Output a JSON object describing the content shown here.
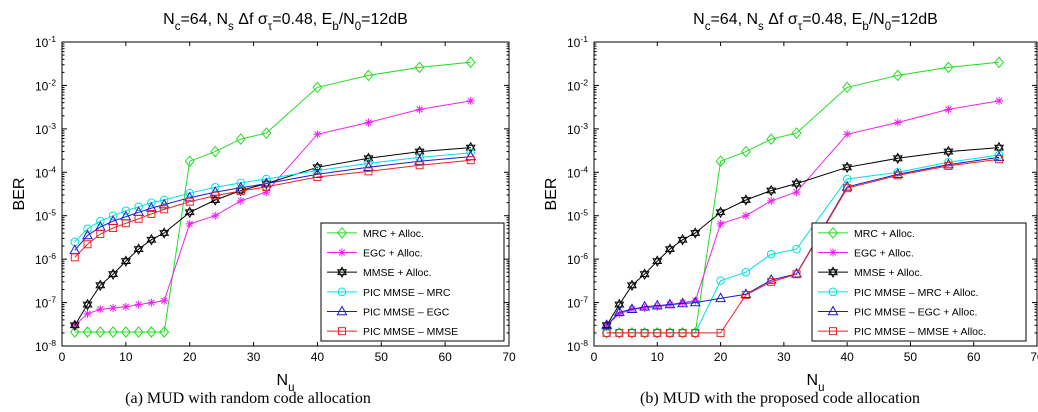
{
  "figure": {
    "panels": [
      {
        "caption": "(a) MUD with random code allocation"
      },
      {
        "caption": "(b) MUD with the proposed code allocation"
      }
    ]
  },
  "chart_data": [
    {
      "type": "line",
      "title": "N_c=64, N_s Δf σ_τ=0.48, E_b/N_0=12dB",
      "xlabel": "N_u",
      "ylabel": "BER",
      "xlim": [
        0,
        70
      ],
      "ylim": [
        1e-08,
        0.1
      ],
      "yscale": "log",
      "xticks": [
        0,
        10,
        20,
        30,
        40,
        50,
        60,
        70
      ],
      "yticks": [
        1e-08,
        1e-07,
        1e-06,
        1e-05,
        0.0001,
        0.001,
        0.01,
        0.1
      ],
      "grid": false,
      "legend": "bottom-right",
      "series": [
        {
          "name": "MRC + Alloc.",
          "color": "#22dd22",
          "marker": "diamond",
          "x": [
            2,
            4,
            6,
            8,
            10,
            12,
            14,
            16,
            20,
            24,
            28,
            32,
            40,
            48,
            56,
            64
          ],
          "y": [
            2.1e-08,
            2.1e-08,
            2.1e-08,
            2.1e-08,
            2.1e-08,
            2.1e-08,
            2.1e-08,
            2.1e-08,
            0.00018,
            0.0003,
            0.00058,
            0.0008,
            0.009,
            0.017,
            0.026,
            0.034
          ]
        },
        {
          "name": "EGC + Alloc.",
          "color": "#ee22ee",
          "marker": "asterisk",
          "x": [
            2,
            4,
            6,
            8,
            10,
            12,
            14,
            16,
            20,
            24,
            28,
            32,
            40,
            48,
            56,
            64
          ],
          "y": [
            3e-08,
            5.5e-08,
            7e-08,
            7.5e-08,
            8e-08,
            9e-08,
            1e-07,
            1.1e-07,
            6.5e-06,
            1e-05,
            2.2e-05,
            3.5e-05,
            0.00075,
            0.0014,
            0.0028,
            0.0044
          ]
        },
        {
          "name": "MMSE + Alloc.",
          "color": "#000000",
          "marker": "hexagram",
          "x": [
            2,
            4,
            6,
            8,
            10,
            12,
            14,
            16,
            20,
            24,
            28,
            32,
            40,
            48,
            56,
            64
          ],
          "y": [
            3e-08,
            9e-08,
            2.5e-07,
            4.5e-07,
            9e-07,
            1.7e-06,
            2.8e-06,
            4e-06,
            1.2e-05,
            2.3e-05,
            3.8e-05,
            5.5e-05,
            0.00013,
            0.00021,
            0.0003,
            0.00037
          ]
        },
        {
          "name": "PIC MMSE – MRC",
          "color": "#00e0e0",
          "marker": "circle",
          "x": [
            2,
            4,
            6,
            8,
            10,
            12,
            14,
            16,
            20,
            24,
            28,
            32,
            40,
            48,
            56,
            64
          ],
          "y": [
            2.5e-06,
            5e-06,
            7.5e-06,
            1e-05,
            1.3e-05,
            1.6e-05,
            2e-05,
            2.3e-05,
            3.3e-05,
            4.5e-05,
            5.7e-05,
            7e-05,
            0.00011,
            0.00016,
            0.00022,
            0.00028
          ]
        },
        {
          "name": "PIC MMSE – EGC",
          "color": "#1a1acc",
          "marker": "triangle",
          "x": [
            2,
            4,
            6,
            8,
            10,
            12,
            14,
            16,
            20,
            24,
            28,
            32,
            40,
            48,
            56,
            64
          ],
          "y": [
            1.6e-06,
            3.5e-06,
            5.5e-06,
            7.5e-06,
            9.5e-06,
            1.2e-05,
            1.5e-05,
            1.8e-05,
            2.6e-05,
            3.5e-05,
            4.4e-05,
            5.5e-05,
            9e-05,
            0.00013,
            0.00018,
            0.00023
          ]
        },
        {
          "name": "PIC MMSE – MMSE",
          "color": "#ee2222",
          "marker": "square",
          "x": [
            2,
            4,
            6,
            8,
            10,
            12,
            14,
            16,
            20,
            24,
            28,
            32,
            40,
            48,
            56,
            64
          ],
          "y": [
            1.1e-06,
            2.2e-06,
            3.8e-06,
            5.2e-06,
            6.7e-06,
            8.5e-06,
            1.1e-05,
            1.4e-05,
            2.1e-05,
            2.9e-05,
            3.7e-05,
            4.6e-05,
            7.8e-05,
            0.000105,
            0.000145,
            0.00019
          ]
        }
      ]
    },
    {
      "type": "line",
      "title": "N_c=64, N_s Δf σ_τ=0.48, E_b/N_0=12dB",
      "xlabel": "N_u",
      "ylabel": "BER",
      "xlim": [
        0,
        70
      ],
      "ylim": [
        1e-08,
        0.1
      ],
      "yscale": "log",
      "xticks": [
        0,
        10,
        20,
        30,
        40,
        50,
        60,
        70
      ],
      "yticks": [
        1e-08,
        1e-07,
        1e-06,
        1e-05,
        0.0001,
        0.001,
        0.01,
        0.1
      ],
      "grid": false,
      "legend": "bottom-right",
      "series": [
        {
          "name": "MRC + Alloc.",
          "color": "#22dd22",
          "marker": "diamond",
          "x": [
            2,
            4,
            6,
            8,
            10,
            12,
            14,
            16,
            20,
            24,
            28,
            32,
            40,
            48,
            56,
            64
          ],
          "y": [
            2e-08,
            2e-08,
            2e-08,
            2e-08,
            2e-08,
            2e-08,
            2e-08,
            2e-08,
            0.00018,
            0.0003,
            0.00058,
            0.0008,
            0.009,
            0.017,
            0.026,
            0.034
          ]
        },
        {
          "name": "EGC + Alloc.",
          "color": "#ee22ee",
          "marker": "asterisk",
          "x": [
            2,
            4,
            6,
            8,
            10,
            12,
            14,
            16,
            20,
            24,
            28,
            32,
            40,
            48,
            56,
            64
          ],
          "y": [
            3e-08,
            5.5e-08,
            7e-08,
            7.5e-08,
            8e-08,
            9e-08,
            1e-07,
            1.1e-07,
            6.5e-06,
            1e-05,
            2.2e-05,
            3.5e-05,
            0.00075,
            0.0014,
            0.0028,
            0.0044
          ]
        },
        {
          "name": "MMSE + Alloc.",
          "color": "#000000",
          "marker": "hexagram",
          "x": [
            2,
            4,
            6,
            8,
            10,
            12,
            14,
            16,
            20,
            24,
            28,
            32,
            40,
            48,
            56,
            64
          ],
          "y": [
            3e-08,
            9e-08,
            2.5e-07,
            4.5e-07,
            9e-07,
            1.7e-06,
            2.8e-06,
            4e-06,
            1.2e-05,
            2.3e-05,
            3.8e-05,
            5.5e-05,
            0.00013,
            0.00021,
            0.0003,
            0.00037
          ]
        },
        {
          "name": "PIC MMSE – MRC + Alloc.",
          "color": "#00e0e0",
          "marker": "circle",
          "x": [
            2,
            4,
            6,
            8,
            10,
            12,
            14,
            16,
            20,
            24,
            28,
            32,
            40,
            48,
            56,
            64
          ],
          "y": [
            2e-08,
            2e-08,
            2e-08,
            2e-08,
            2e-08,
            2e-08,
            2e-08,
            2e-08,
            3.2e-07,
            5e-07,
            1.3e-06,
            1.7e-06,
            7e-05,
            0.0001,
            0.00017,
            0.00025
          ]
        },
        {
          "name": "PIC MMSE – EGC + Alloc.",
          "color": "#1a1acc",
          "marker": "triangle",
          "x": [
            2,
            4,
            6,
            8,
            10,
            12,
            14,
            16,
            20,
            24,
            28,
            32,
            40,
            48,
            56,
            64
          ],
          "y": [
            3e-08,
            6e-08,
            7e-08,
            8e-08,
            8.5e-08,
            9e-08,
            9.5e-08,
            1e-07,
            1.25e-07,
            1.55e-07,
            3.3e-07,
            4.6e-07,
            4.6e-05,
            9e-05,
            0.00015,
            0.00022
          ]
        },
        {
          "name": "PIC MMSE – MMSE + Alloc.",
          "color": "#ee2222",
          "marker": "square",
          "x": [
            2,
            4,
            6,
            8,
            10,
            12,
            14,
            16,
            20,
            24,
            28,
            32,
            40,
            48,
            56,
            64
          ],
          "y": [
            2e-08,
            2e-08,
            2e-08,
            2e-08,
            2e-08,
            2e-08,
            2e-08,
            2e-08,
            2e-08,
            1.5e-07,
            3e-07,
            4.5e-07,
            4.3e-05,
            8.5e-05,
            0.00014,
            0.0002
          ]
        }
      ]
    }
  ]
}
